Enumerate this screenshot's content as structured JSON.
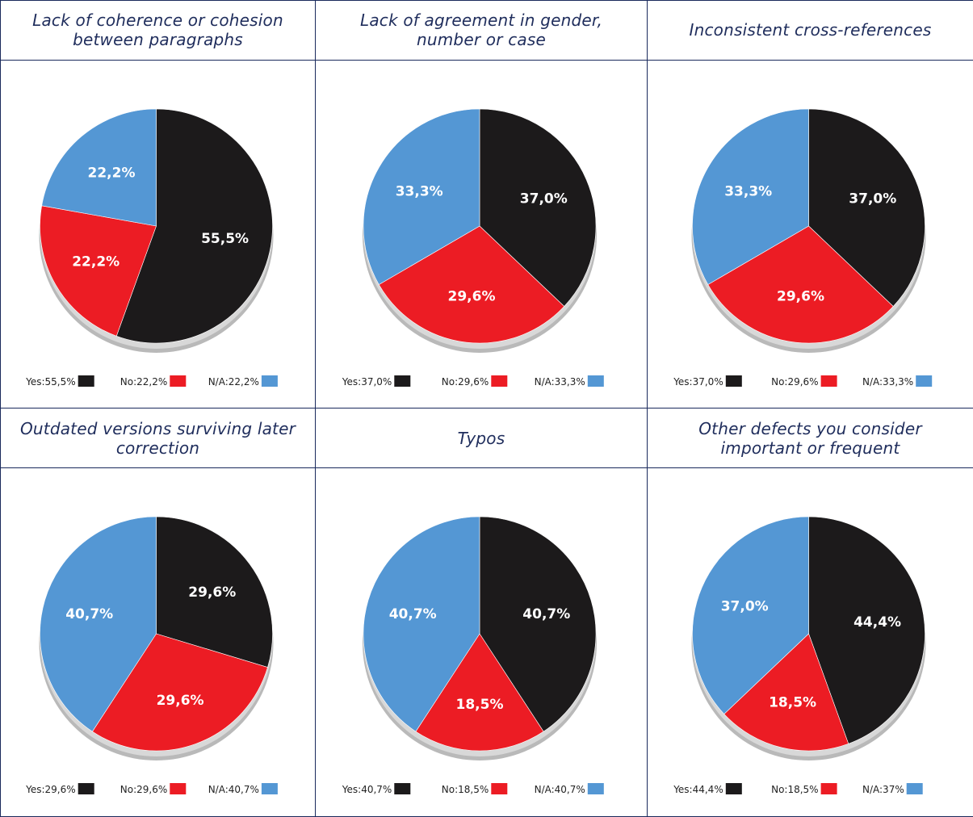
{
  "colors": {
    "yes": "#1c1a1b",
    "no": "#ec1c24",
    "na": "#5497d4"
  },
  "chart_data": [
    {
      "type": "pie",
      "title": "Lack of coherence or cohesion between paragraphs",
      "slices": [
        {
          "name": "Yes",
          "value": 55.5,
          "label": "55,5%",
          "legend": "Yes:55,5%"
        },
        {
          "name": "No",
          "value": 22.2,
          "label": "22,2%",
          "legend": "No:22,2%"
        },
        {
          "name": "N/A",
          "value": 22.2,
          "label": "22,2%",
          "legend": "N/A:22,2%"
        }
      ]
    },
    {
      "type": "pie",
      "title": "Lack of agreement in gender, number or case",
      "slices": [
        {
          "name": "Yes",
          "value": 37.0,
          "label": "37,0%",
          "legend": "Yes:37,0%"
        },
        {
          "name": "No",
          "value": 29.6,
          "label": "29,6%",
          "legend": "No:29,6%"
        },
        {
          "name": "N/A",
          "value": 33.3,
          "label": "33,3%",
          "legend": "N/A:33,3%"
        }
      ]
    },
    {
      "type": "pie",
      "title": "Inconsistent cross-references",
      "slices": [
        {
          "name": "Yes",
          "value": 37.0,
          "label": "37,0%",
          "legend": "Yes:37,0%"
        },
        {
          "name": "No",
          "value": 29.6,
          "label": "29,6%",
          "legend": "No:29,6%"
        },
        {
          "name": "N/A",
          "value": 33.3,
          "label": "33,3%",
          "legend": "N/A:33,3%"
        }
      ]
    },
    {
      "type": "pie",
      "title": "Outdated versions surviving later correction",
      "slices": [
        {
          "name": "Yes",
          "value": 29.6,
          "label": "29,6%",
          "legend": "Yes:29,6%"
        },
        {
          "name": "No",
          "value": 29.6,
          "label": "29,6%",
          "legend": "No:29,6%"
        },
        {
          "name": "N/A",
          "value": 40.7,
          "label": "40,7%",
          "legend": "N/A:40,7%"
        }
      ]
    },
    {
      "type": "pie",
      "title": "Typos",
      "slices": [
        {
          "name": "Yes",
          "value": 40.7,
          "label": "40,7%",
          "legend": "Yes:40,7%"
        },
        {
          "name": "No",
          "value": 18.5,
          "label": "18,5%",
          "legend": "No:18,5%"
        },
        {
          "name": "N/A",
          "value": 40.7,
          "label": "40,7%",
          "legend": "N/A:40,7%"
        }
      ]
    },
    {
      "type": "pie",
      "title": "Other defects you consider important or frequent",
      "slices": [
        {
          "name": "Yes",
          "value": 44.4,
          "label": "44,4%",
          "legend": "Yes:44,4%"
        },
        {
          "name": "No",
          "value": 18.5,
          "label": "18,5%",
          "legend": "No:18,5%"
        },
        {
          "name": "N/A",
          "value": 37.0,
          "label": "37,0%",
          "legend": "N/A:37%"
        }
      ]
    }
  ]
}
